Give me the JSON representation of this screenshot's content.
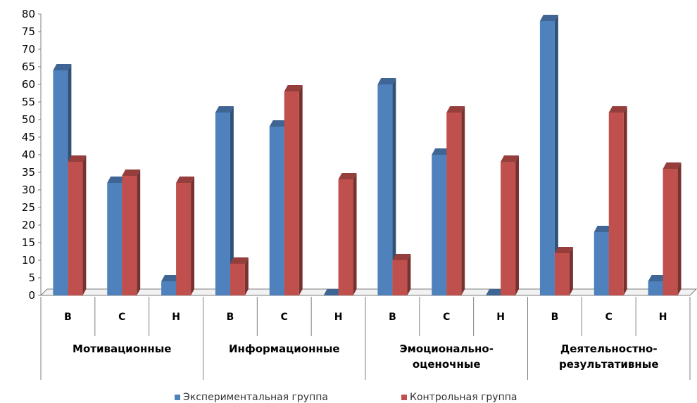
{
  "chart_data": {
    "type": "bar",
    "ylim": [
      0,
      80
    ],
    "yticks": [
      0,
      5,
      10,
      15,
      20,
      25,
      30,
      35,
      40,
      45,
      50,
      55,
      60,
      65,
      70,
      75,
      80
    ],
    "grid": false,
    "legend_position": "bottom",
    "categories": [
      "В",
      "С",
      "Н",
      "В",
      "С",
      "Н",
      "В",
      "С",
      "Н",
      "В",
      "С",
      "Н"
    ],
    "groups": [
      {
        "label_lines": [
          "Мотивационные"
        ],
        "span": 3
      },
      {
        "label_lines": [
          "Информационные"
        ],
        "span": 3
      },
      {
        "label_lines": [
          "Эмоционально-",
          "оценочные"
        ],
        "span": 3
      },
      {
        "label_lines": [
          "Деятельностно-",
          "результативные"
        ],
        "span": 3
      }
    ],
    "series": [
      {
        "name": "Экспериментальная группа",
        "color": "#4f81bd",
        "values": [
          64,
          32,
          4,
          52,
          48,
          0,
          60,
          40,
          0,
          78,
          18,
          4
        ]
      },
      {
        "name": "Контрольная группа",
        "color": "#c0504d",
        "values": [
          38,
          34,
          32,
          9,
          58,
          33,
          10,
          52,
          38,
          12,
          52,
          36
        ]
      }
    ]
  }
}
